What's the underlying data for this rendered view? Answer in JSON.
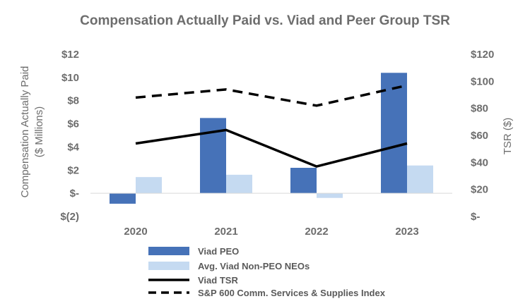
{
  "chart_data": {
    "type": "bar",
    "title": "Compensation Actually Paid vs. Viad and Peer Group TSR",
    "categories": [
      "2020",
      "2021",
      "2022",
      "2023"
    ],
    "ylabel_left_line1": "Compensation Actually Paid",
    "ylabel_left_line2": "($ Millions)",
    "ylabel_right": "TSR ($)",
    "ylim_left": [
      -2,
      12
    ],
    "ylim_right": [
      0,
      120
    ],
    "left_ticks": [
      {
        "value": 12,
        "label": "$12"
      },
      {
        "value": 10,
        "label": "$10"
      },
      {
        "value": 8,
        "label": "$8"
      },
      {
        "value": 6,
        "label": "$6"
      },
      {
        "value": 4,
        "label": "$4"
      },
      {
        "value": 2,
        "label": "$2"
      },
      {
        "value": 0,
        "label": "$-"
      },
      {
        "value": -2,
        "label": "$(2)"
      }
    ],
    "right_ticks": [
      {
        "value": 120,
        "label": "$120"
      },
      {
        "value": 100,
        "label": "$100"
      },
      {
        "value": 80,
        "label": "$80"
      },
      {
        "value": 60,
        "label": "$60"
      },
      {
        "value": 40,
        "label": "$40"
      },
      {
        "value": 20,
        "label": "$20"
      },
      {
        "value": 0,
        "label": "$-"
      }
    ],
    "bar_series": [
      {
        "name": "Viad PEO",
        "color": "#4672b8",
        "values": [
          -0.9,
          6.5,
          2.2,
          10.4
        ]
      },
      {
        "name": "Avg. Viad Non-PEO NEOs",
        "color": "#c5daf1",
        "values": [
          1.4,
          1.6,
          -0.4,
          2.4
        ]
      }
    ],
    "line_series": [
      {
        "name": "Viad TSR",
        "color": "#000000",
        "style": "solid",
        "values": [
          54,
          64,
          37,
          54
        ]
      },
      {
        "name": "S&P 600 Comm. Services & Supplies Index",
        "color": "#000000",
        "style": "dashed",
        "values": [
          88,
          94,
          82,
          97
        ]
      }
    ],
    "grid": false,
    "legend_position": "bottom"
  }
}
